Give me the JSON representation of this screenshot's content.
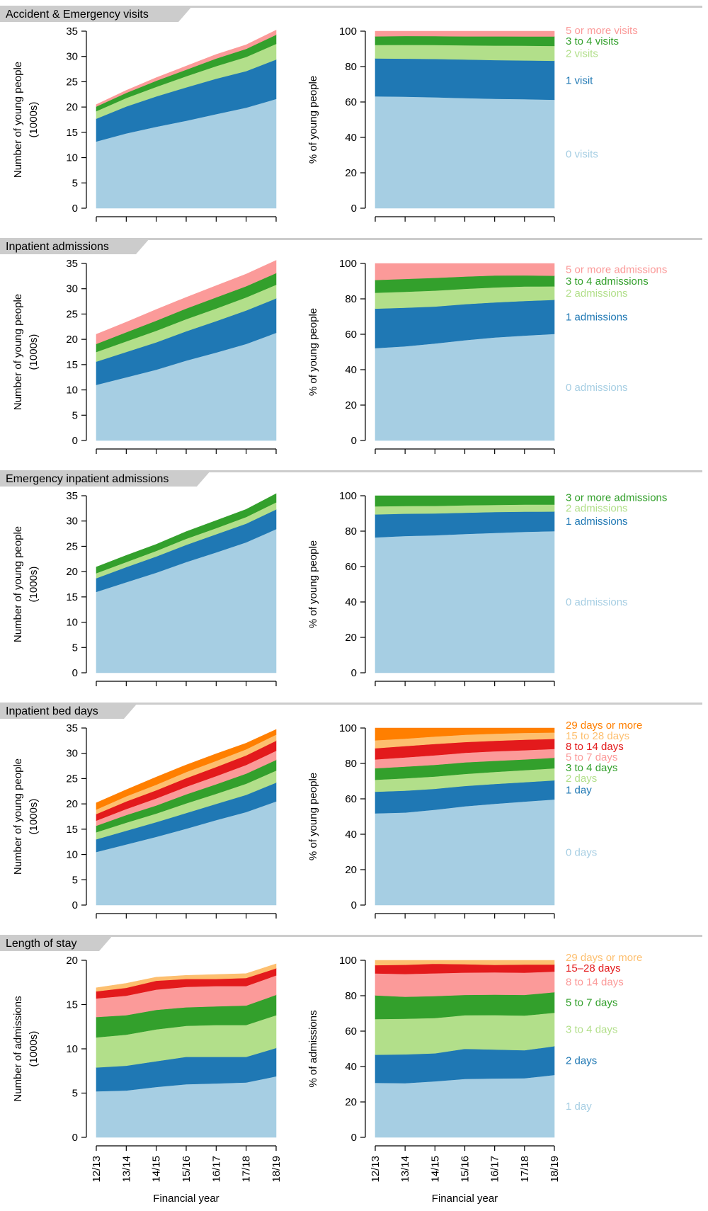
{
  "chart_data": [
    {
      "type": "area",
      "panel": "Accident & Emergency visits",
      "title": "Accident & Emergency visits",
      "xlabel": "",
      "ylabel": "Number of young people\n(1000s)",
      "x": [
        "12/13",
        "13/14",
        "14/15",
        "15/16",
        "16/17",
        "17/18",
        "18/19"
      ],
      "ylim": [
        0,
        35
      ],
      "yticks": [
        0,
        5,
        10,
        15,
        20,
        25,
        30,
        35
      ],
      "stacked": true,
      "series": [
        {
          "values": [
            13.2,
            14.8,
            16.1,
            17.3,
            18.6,
            19.9,
            21.6
          ]
        },
        {
          "values": [
            4.5,
            5.3,
            6.0,
            6.6,
            7.0,
            7.2,
            7.8
          ]
        },
        {
          "values": [
            1.5,
            1.7,
            1.9,
            2.2,
            2.5,
            2.8,
            3.1
          ]
        },
        {
          "values": [
            0.9,
            1.0,
            1.2,
            1.3,
            1.5,
            1.6,
            1.8
          ]
        },
        {
          "values": [
            0.4,
            0.5,
            0.6,
            0.7,
            0.8,
            0.8,
            0.9
          ]
        }
      ]
    },
    {
      "type": "area",
      "panel": "Accident & Emergency visits",
      "xlabel": "",
      "ylabel": "% of young people",
      "x": [
        "12/13",
        "13/14",
        "14/15",
        "15/16",
        "16/17",
        "17/18",
        "18/19"
      ],
      "ylim": [
        0,
        100
      ],
      "yticks": [
        0,
        20,
        40,
        60,
        80,
        100
      ],
      "stacked": true,
      "series": [
        {
          "name": "0 visits",
          "values": [
            63.2,
            63.0,
            62.7,
            62.2,
            61.8,
            61.6,
            61.3
          ]
        },
        {
          "name": "1 visit",
          "values": [
            21.4,
            21.5,
            21.6,
            21.8,
            21.9,
            21.9,
            22.0
          ]
        },
        {
          "name": "2 visits",
          "values": [
            7.6,
            7.8,
            7.9,
            8.0,
            8.2,
            8.3,
            8.4
          ]
        },
        {
          "name": "3 to 4 visits",
          "values": [
            4.9,
            5.0,
            5.0,
            5.1,
            5.2,
            5.2,
            5.3
          ]
        },
        {
          "name": "5 or more visits",
          "values": [
            2.9,
            2.7,
            2.8,
            2.9,
            2.9,
            3.0,
            3.0
          ]
        }
      ]
    },
    {
      "type": "area",
      "panel": "Inpatient admissions",
      "title": "Inpatient admissions",
      "xlabel": "",
      "ylabel": "Number of young people\n(1000s)",
      "x": [
        "12/13",
        "13/14",
        "14/15",
        "15/16",
        "16/17",
        "17/18",
        "18/19"
      ],
      "ylim": [
        0,
        35
      ],
      "yticks": [
        0,
        5,
        10,
        15,
        20,
        25,
        30,
        35
      ],
      "stacked": true,
      "series": [
        {
          "values": [
            11.0,
            12.5,
            14.0,
            15.8,
            17.4,
            19.1,
            21.3
          ]
        },
        {
          "values": [
            4.6,
            5.0,
            5.4,
            5.8,
            6.2,
            6.6,
            6.8
          ]
        },
        {
          "values": [
            1.9,
            2.1,
            2.3,
            2.4,
            2.5,
            2.6,
            2.7
          ]
        },
        {
          "values": [
            1.6,
            1.8,
            2.0,
            2.1,
            2.2,
            2.2,
            2.3
          ]
        },
        {
          "values": [
            1.9,
            2.0,
            2.2,
            2.2,
            2.3,
            2.4,
            2.5
          ]
        }
      ]
    },
    {
      "type": "area",
      "panel": "Inpatient admissions",
      "xlabel": "",
      "ylabel": "% of young people",
      "x": [
        "12/13",
        "13/14",
        "14/15",
        "15/16",
        "16/17",
        "17/18",
        "18/19"
      ],
      "ylim": [
        0,
        100
      ],
      "yticks": [
        0,
        20,
        40,
        60,
        80,
        100
      ],
      "stacked": true,
      "series": [
        {
          "name": "0 admissions",
          "values": [
            52.2,
            53.2,
            54.8,
            56.7,
            58.2,
            59.3,
            60.2
          ]
        },
        {
          "name": "1 admissions",
          "values": [
            22.3,
            21.8,
            20.9,
            20.3,
            19.8,
            19.5,
            19.3
          ]
        },
        {
          "name": "2 admissions",
          "values": [
            9.0,
            9.0,
            9.0,
            8.7,
            8.5,
            8.2,
            7.6
          ]
        },
        {
          "name": "3 to 4 admissions",
          "values": [
            7.2,
            7.3,
            7.2,
            6.9,
            6.7,
            6.3,
            6.0
          ]
        },
        {
          "name": "5 or more admissions",
          "values": [
            9.3,
            8.7,
            8.1,
            7.4,
            6.8,
            6.7,
            6.9
          ]
        }
      ]
    },
    {
      "type": "area",
      "panel": "Emergency inpatient admissions",
      "title": "Emergency inpatient admissions",
      "xlabel": "",
      "ylabel": "Number of young people\n(1000s)",
      "x": [
        "12/13",
        "13/14",
        "14/15",
        "15/16",
        "16/17",
        "17/18",
        "18/19"
      ],
      "ylim": [
        0,
        35
      ],
      "yticks": [
        0,
        5,
        10,
        15,
        20,
        25,
        30,
        35
      ],
      "stacked": true,
      "series": [
        {
          "values": [
            16.0,
            17.9,
            19.8,
            21.9,
            23.8,
            25.8,
            28.4
          ]
        },
        {
          "values": [
            2.7,
            3.0,
            3.2,
            3.4,
            3.6,
            3.7,
            3.9
          ]
        },
        {
          "values": [
            1.0,
            1.0,
            1.1,
            1.2,
            1.2,
            1.3,
            1.4
          ]
        },
        {
          "values": [
            1.2,
            1.3,
            1.3,
            1.4,
            1.5,
            1.5,
            1.7
          ]
        }
      ]
    },
    {
      "type": "area",
      "panel": "Emergency inpatient admissions",
      "xlabel": "",
      "ylabel": "% of young people",
      "x": [
        "12/13",
        "13/14",
        "14/15",
        "15/16",
        "16/17",
        "17/18",
        "18/19"
      ],
      "ylim": [
        0,
        100
      ],
      "yticks": [
        0,
        20,
        40,
        60,
        80,
        100
      ],
      "stacked": true,
      "series": [
        {
          "name": "0 admissions",
          "values": [
            76.5,
            77.3,
            77.7,
            78.4,
            79.0,
            79.6,
            80.0
          ]
        },
        {
          "name": "1 admissions",
          "values": [
            13.0,
            12.6,
            12.3,
            12.0,
            11.8,
            11.4,
            11.1
          ]
        },
        {
          "name": "2 admissions",
          "values": [
            4.5,
            4.3,
            4.3,
            4.2,
            4.0,
            4.0,
            3.9
          ]
        },
        {
          "name": "3 or more admissions",
          "values": [
            6.0,
            5.8,
            5.7,
            5.4,
            5.2,
            5.0,
            5.0
          ]
        }
      ]
    },
    {
      "type": "area",
      "panel": "Inpatient bed days",
      "title": "Inpatient bed days",
      "xlabel": "",
      "ylabel": "Number of young people\n(1000s)",
      "x": [
        "12/13",
        "13/14",
        "14/15",
        "15/16",
        "16/17",
        "17/18",
        "18/19"
      ],
      "ylim": [
        0,
        35
      ],
      "yticks": [
        0,
        5,
        10,
        15,
        20,
        25,
        30,
        35
      ],
      "stacked": true,
      "series": [
        {
          "values": [
            10.5,
            12.0,
            13.5,
            15.1,
            16.8,
            18.4,
            20.5
          ]
        },
        {
          "values": [
            2.5,
            2.7,
            2.9,
            3.1,
            3.2,
            3.4,
            3.7
          ]
        },
        {
          "values": [
            1.4,
            1.6,
            1.7,
            1.9,
            2.0,
            2.2,
            2.4
          ]
        },
        {
          "values": [
            1.3,
            1.5,
            1.6,
            1.8,
            1.9,
            2.0,
            2.1
          ]
        },
        {
          "values": [
            1.0,
            1.2,
            1.4,
            1.5,
            1.6,
            1.7,
            1.8
          ]
        },
        {
          "values": [
            1.3,
            1.5,
            1.6,
            1.7,
            1.8,
            1.9,
            2.0
          ]
        },
        {
          "values": [
            0.9,
            1.0,
            1.1,
            1.2,
            1.2,
            1.2,
            1.2
          ]
        },
        {
          "values": [
            1.3,
            1.3,
            1.5,
            1.4,
            1.4,
            1.2,
            1.0
          ]
        }
      ]
    },
    {
      "type": "area",
      "panel": "Inpatient bed days",
      "xlabel": "",
      "ylabel": "% of young people",
      "x": [
        "12/13",
        "13/14",
        "14/15",
        "15/16",
        "16/17",
        "17/18",
        "18/19"
      ],
      "ylim": [
        0,
        100
      ],
      "yticks": [
        0,
        20,
        40,
        60,
        80,
        100
      ],
      "stacked": true,
      "series": [
        {
          "name": "0 days",
          "values": [
            51.8,
            52.3,
            53.9,
            55.8,
            57.2,
            58.5,
            59.7
          ]
        },
        {
          "name": "1 day",
          "values": [
            12.2,
            12.3,
            11.8,
            11.5,
            11.2,
            10.9,
            10.8
          ]
        },
        {
          "name": "2 days",
          "values": [
            6.8,
            7.0,
            6.9,
            6.8,
            6.8,
            6.8,
            6.8
          ]
        },
        {
          "name": "3 to 4 days",
          "values": [
            6.5,
            6.6,
            6.6,
            6.5,
            6.3,
            6.1,
            5.9
          ]
        },
        {
          "name": "5 to 7 days",
          "values": [
            5.0,
            5.2,
            5.4,
            5.4,
            5.4,
            5.2,
            5.0
          ]
        },
        {
          "name": "8 to 14 days",
          "values": [
            6.3,
            6.4,
            6.4,
            6.1,
            5.9,
            5.9,
            5.7
          ]
        },
        {
          "name": "15 to 28 days",
          "values": [
            4.5,
            4.2,
            4.2,
            4.1,
            4.0,
            3.9,
            3.6
          ]
        },
        {
          "name": "29 days or more",
          "values": [
            6.9,
            6.0,
            4.8,
            3.8,
            3.2,
            2.7,
            2.5
          ]
        }
      ]
    },
    {
      "type": "area",
      "panel": "Length of stay",
      "title": "Length of stay",
      "xlabel": "Financial year",
      "ylabel": "Number of admissions\n(1000s)",
      "x": [
        "12/13",
        "13/14",
        "14/15",
        "15/16",
        "16/17",
        "17/18",
        "18/19"
      ],
      "ylim": [
        0,
        20
      ],
      "yticks": [
        0,
        5,
        10,
        15,
        20
      ],
      "stacked": true,
      "series": [
        {
          "values": [
            5.2,
            5.3,
            5.7,
            6.0,
            6.1,
            6.2,
            6.9
          ]
        },
        {
          "values": [
            2.7,
            2.8,
            2.9,
            3.1,
            3.0,
            2.9,
            3.2
          ]
        },
        {
          "values": [
            3.4,
            3.5,
            3.6,
            3.5,
            3.6,
            3.6,
            3.7
          ]
        },
        {
          "values": [
            2.3,
            2.2,
            2.2,
            2.1,
            2.1,
            2.2,
            2.3
          ]
        },
        {
          "values": [
            2.1,
            2.2,
            2.3,
            2.3,
            2.3,
            2.2,
            2.2
          ]
        },
        {
          "values": [
            0.8,
            0.9,
            1.0,
            0.9,
            0.8,
            0.9,
            0.8
          ]
        },
        {
          "values": [
            0.4,
            0.5,
            0.4,
            0.4,
            0.5,
            0.5,
            0.5
          ]
        }
      ]
    },
    {
      "type": "area",
      "panel": "Length of stay",
      "xlabel": "Financial year",
      "ylabel": "% of admissions",
      "x": [
        "12/13",
        "13/14",
        "14/15",
        "15/16",
        "16/17",
        "17/18",
        "18/19"
      ],
      "ylim": [
        0,
        100
      ],
      "yticks": [
        0,
        20,
        40,
        60,
        80,
        100
      ],
      "stacked": true,
      "series": [
        {
          "name": "1 day",
          "values": [
            30.8,
            30.6,
            31.7,
            33.0,
            33.3,
            33.4,
            35.3
          ]
        },
        {
          "name": "2 days",
          "values": [
            15.9,
            16.3,
            15.8,
            17.0,
            16.3,
            15.8,
            16.2
          ]
        },
        {
          "name": "3 to 4 days",
          "values": [
            20.1,
            20.1,
            19.9,
            19.0,
            19.5,
            19.6,
            18.9
          ]
        },
        {
          "name": "5 to 7 days",
          "values": [
            13.4,
            12.4,
            12.4,
            11.5,
            11.5,
            11.7,
            11.6
          ]
        },
        {
          "name": "8 to 14 days",
          "values": [
            12.4,
            12.9,
            12.9,
            12.6,
            12.6,
            12.5,
            11.7
          ]
        },
        {
          "name": "15–28 days",
          "values": [
            4.7,
            5.2,
            5.4,
            4.7,
            4.2,
            4.6,
            3.9
          ]
        },
        {
          "name": "29 days or more",
          "values": [
            2.7,
            2.5,
            1.9,
            2.2,
            2.6,
            2.4,
            2.4
          ]
        }
      ]
    }
  ],
  "colors": {
    "c0": "#a6cee3",
    "c1": "#1f78b4",
    "c2": "#b2df8a",
    "c3": "#33a02c",
    "c4": "#fb9a99",
    "c5": "#e31a1c",
    "c6": "#fdbf6f",
    "c7": "#ff7f00",
    "band": "#cccccc",
    "axis": "#000000"
  }
}
